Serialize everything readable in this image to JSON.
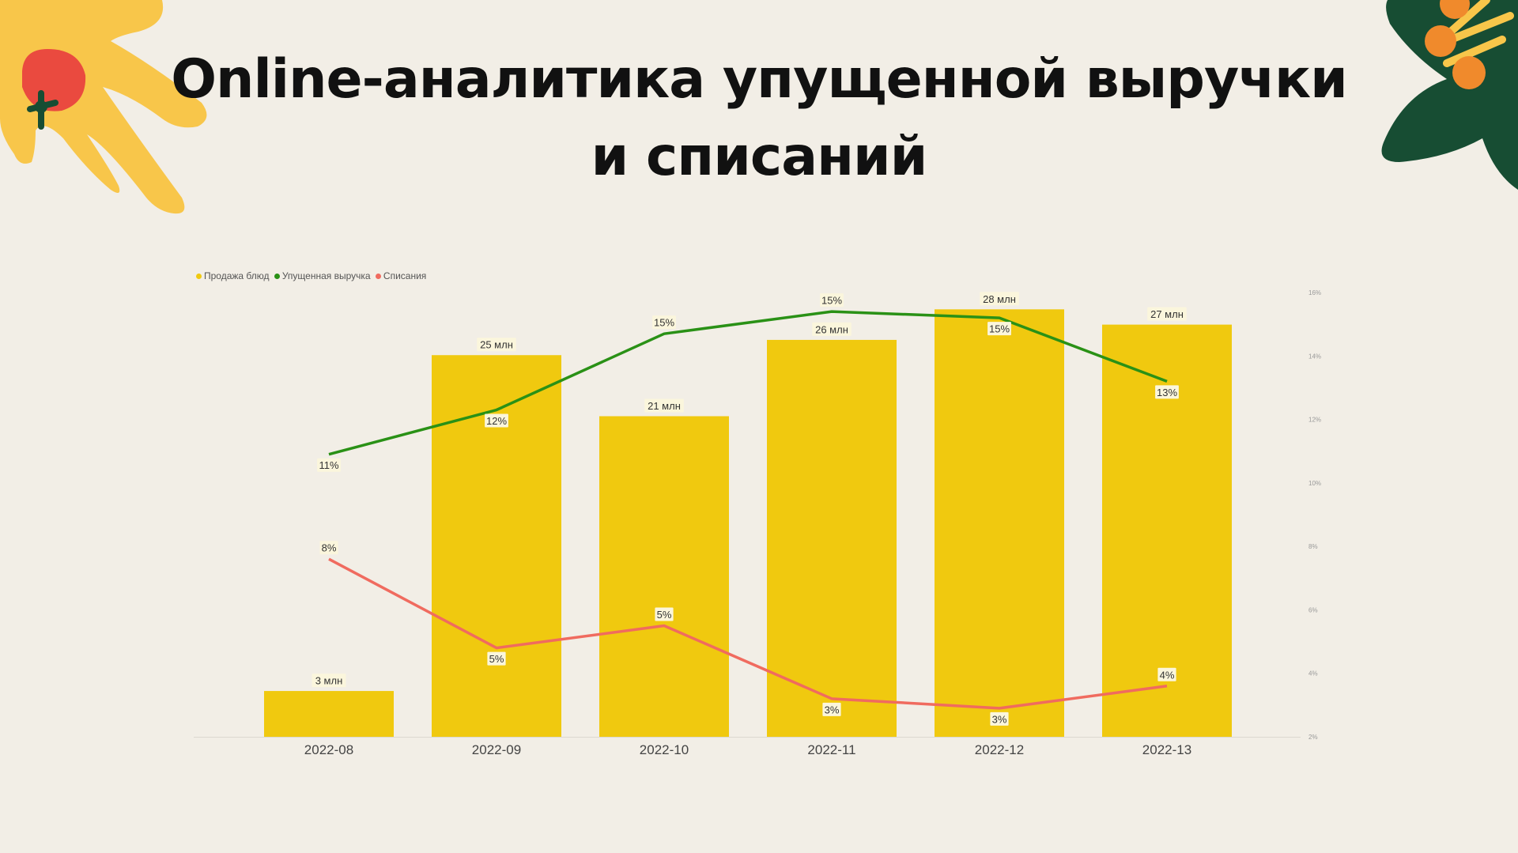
{
  "title": {
    "line1": "Online-аналитика упущенной выручки",
    "line2": "и списаний"
  },
  "colors": {
    "background": "#f2eee6",
    "bar": "#f0c90f",
    "lost_revenue": "#2a9116",
    "write_offs": "#f06b5f",
    "deco_yellow": "#f8c64a",
    "deco_red": "#ea4a3f",
    "deco_green": "#174d33",
    "deco_orange": "#f08a2c"
  },
  "chart_data": {
    "type": "bar",
    "categories": [
      "2022-08",
      "2022-09",
      "2022-10",
      "2022-11",
      "2022-12",
      "2022-13"
    ],
    "bar_series": {
      "name": "Продажа блюд",
      "values": [
        3,
        25,
        21,
        26,
        28,
        27
      ],
      "labels": [
        "3 млн",
        "25 млн",
        "21 млн",
        "26 млн",
        "28 млн",
        "27 млн"
      ],
      "unit": "млн"
    },
    "line_series": [
      {
        "name": "Упущенная выручка",
        "values": [
          10.9,
          12.3,
          14.7,
          15.4,
          15.2,
          13.2
        ],
        "labels": [
          "11%",
          "12%",
          "15%",
          "15%",
          "15%",
          "13%"
        ],
        "label_position": [
          "below",
          "below",
          "above",
          "above",
          "below",
          "below"
        ]
      },
      {
        "name": "Списания",
        "values": [
          7.6,
          4.8,
          5.5,
          3.2,
          2.9,
          3.6
        ],
        "labels": [
          "8%",
          "5%",
          "5%",
          "3%",
          "3%",
          "4%"
        ],
        "label_position": [
          "above",
          "below",
          "above",
          "below",
          "below",
          "above"
        ]
      }
    ],
    "right_axis": {
      "ticks": [
        "2%",
        "4%",
        "6%",
        "8%",
        "10%",
        "12%",
        "14%",
        "16%"
      ],
      "range": [
        2,
        16
      ]
    },
    "left_axis_range": [
      0,
      29
    ],
    "legend_position": "top-left",
    "grid": false
  }
}
